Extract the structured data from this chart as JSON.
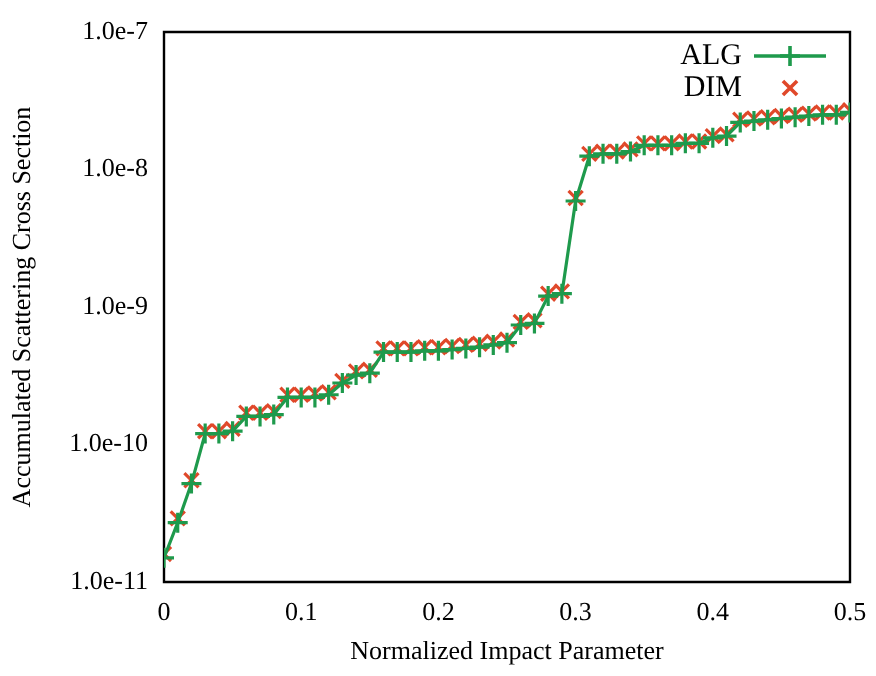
{
  "chart_data": {
    "type": "scatter",
    "xlabel": "Normalized Impact Parameter",
    "ylabel": "Accumulated Scattering Cross Section",
    "x": [
      0,
      0.01,
      0.02,
      0.03,
      0.04,
      0.05,
      0.06,
      0.07,
      0.08,
      0.09,
      0.1,
      0.11,
      0.12,
      0.13,
      0.14,
      0.15,
      0.16,
      0.17,
      0.18,
      0.19,
      0.2,
      0.21,
      0.22,
      0.23,
      0.24,
      0.25,
      0.26,
      0.27,
      0.28,
      0.29,
      0.3,
      0.31,
      0.32,
      0.33,
      0.34,
      0.35,
      0.36,
      0.37,
      0.38,
      0.39,
      0.4,
      0.41,
      0.42,
      0.43,
      0.44,
      0.45,
      0.46,
      0.47,
      0.48,
      0.49,
      0.5
    ],
    "series": [
      {
        "name": "ALG",
        "type": "line",
        "marker": "cross",
        "color": "#1e9a4c",
        "values": [
          1.5e-11,
          2.7e-11,
          5.2e-11,
          1.2e-10,
          1.2e-10,
          1.25e-10,
          1.6e-10,
          1.6e-10,
          1.65e-10,
          2.2e-10,
          2.2e-10,
          2.2e-10,
          2.3e-10,
          2.8e-10,
          3.2e-10,
          3.3e-10,
          4.7e-10,
          4.7e-10,
          4.7e-10,
          4.8e-10,
          4.8e-10,
          4.9e-10,
          5e-10,
          5.1e-10,
          5.3e-10,
          5.5e-10,
          7.4e-10,
          7.6e-10,
          1.2e-09,
          1.25e-09,
          5.9e-09,
          1.25e-08,
          1.3e-08,
          1.3e-08,
          1.35e-08,
          1.5e-08,
          1.5e-08,
          1.5e-08,
          1.55e-08,
          1.55e-08,
          1.7e-08,
          1.75e-08,
          2.2e-08,
          2.25e-08,
          2.3e-08,
          2.35e-08,
          2.4e-08,
          2.45e-08,
          2.5e-08,
          2.5e-08,
          2.6e-08
        ]
      },
      {
        "name": "DIM",
        "type": "scatter",
        "marker": "cross",
        "color": "#e0482a",
        "values": [
          1.6e-11,
          2.9e-11,
          5.5e-11,
          1.25e-10,
          1.25e-10,
          1.3e-10,
          1.7e-10,
          1.7e-10,
          1.75e-10,
          2.3e-10,
          2.3e-10,
          2.35e-10,
          2.4e-10,
          2.9e-10,
          3.4e-10,
          3.5e-10,
          5e-10,
          5e-10,
          5e-10,
          5.1e-10,
          5.1e-10,
          5.2e-10,
          5.3e-10,
          5.4e-10,
          5.6e-10,
          5.8e-10,
          7.8e-10,
          8e-10,
          1.25e-09,
          1.3e-09,
          6.2e-09,
          1.3e-08,
          1.35e-08,
          1.35e-08,
          1.4e-08,
          1.55e-08,
          1.55e-08,
          1.55e-08,
          1.6e-08,
          1.6e-08,
          1.75e-08,
          1.8e-08,
          2.3e-08,
          2.35e-08,
          2.4e-08,
          2.45e-08,
          2.5e-08,
          2.55e-08,
          2.6e-08,
          2.6e-08,
          2.7e-08
        ]
      }
    ],
    "log": "y",
    "xlim": [
      0,
      0.5
    ],
    "xticks": [
      0,
      0.1,
      0.2,
      0.3,
      0.4,
      0.5
    ],
    "ylim": [
      1e-11,
      1e-07
    ],
    "yticks": [
      {
        "value": 1e-11,
        "label": "1.0e-11"
      },
      {
        "value": 1e-10,
        "label": "1.0e-10"
      },
      {
        "value": 1e-09,
        "label": "1.0e-9"
      },
      {
        "value": 1e-08,
        "label": "1.0e-8"
      },
      {
        "value": 1e-07,
        "label": "1.0e-7"
      }
    ],
    "grid": false,
    "legend": "top right"
  }
}
